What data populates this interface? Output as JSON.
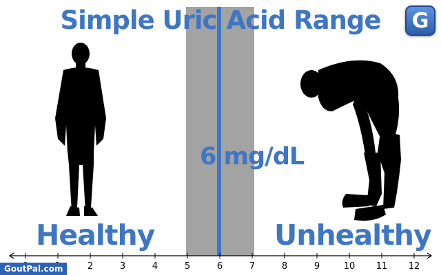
{
  "title": {
    "line1": "Simple Uric",
    "line2": "Acid Range"
  },
  "threshold_label": "6 mg/dL",
  "left_label": "Healthy",
  "right_label": "Unhealthy",
  "logo_letter": "G",
  "brand": "GoutPal.com",
  "colors": {
    "accent": "#3f76c4",
    "band": "#a3a3a3",
    "silhouette": "#000000"
  },
  "chart_data": {
    "type": "number-line",
    "xlim": [
      0,
      12
    ],
    "ticks": [
      0,
      1,
      2,
      3,
      4,
      5,
      6,
      7,
      8,
      9,
      10,
      11,
      12
    ],
    "highlight_band": [
      5,
      7
    ],
    "marker": 6
  }
}
